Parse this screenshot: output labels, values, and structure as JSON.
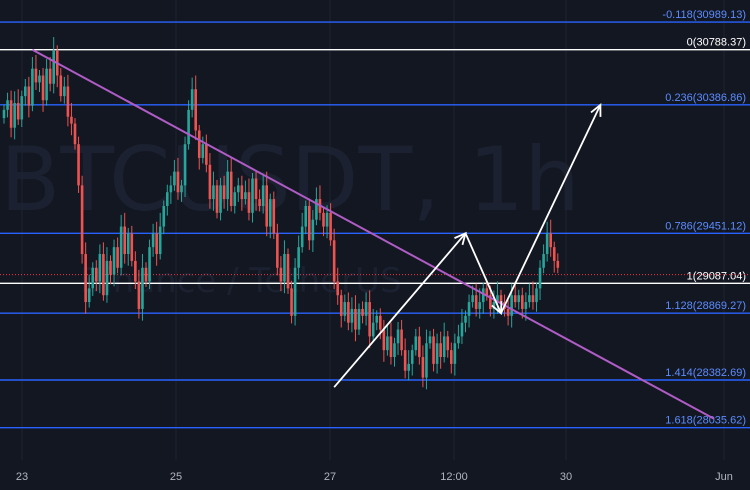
{
  "chart_data": {
    "type": "candlestick",
    "symbol_watermark": "BTCUSDT, 1h",
    "exchange_watermark": "Binance / TetherUS",
    "x_ticks": [
      "23",
      "25",
      "27",
      "12:00",
      "30",
      "Jun"
    ],
    "fib_levels": [
      {
        "ratio": "-0.118",
        "price": 30989.13,
        "label": "-0.118(30989.13)",
        "color": "#2962ff"
      },
      {
        "ratio": "0",
        "price": 30788.37,
        "label": "0(30788.37)",
        "color": "#ffffff"
      },
      {
        "ratio": "0.236",
        "price": 30386.86,
        "label": "0.236(30386.86)",
        "color": "#2962ff"
      },
      {
        "ratio": "0.786",
        "price": 29451.12,
        "label": "0.786(29451.12)",
        "color": "#2962ff"
      },
      {
        "ratio": "1",
        "price": 29087.04,
        "label": "1(29087.04)",
        "color": "#ffffff"
      },
      {
        "ratio": "1.128",
        "price": 28869.27,
        "label": "1.128(28869.27)",
        "color": "#2962ff"
      },
      {
        "ratio": "1.414",
        "price": 28382.69,
        "label": "1.414(28382.69)",
        "color": "#2962ff"
      },
      {
        "ratio": "1.618",
        "price": 28035.62,
        "label": "1.618(28035.62)",
        "color": "#2962ff"
      }
    ],
    "price_range": [
      27800,
      31150
    ],
    "current_price": 29150,
    "candle_closes": [
      30350,
      30420,
      30220,
      30400,
      30280,
      30450,
      30520,
      30380,
      30650,
      30550,
      30600,
      30420,
      30650,
      30540,
      30780,
      30600,
      30450,
      30520,
      30300,
      30250,
      30100,
      29800,
      29300,
      28950,
      29050,
      29200,
      29100,
      29300,
      29000,
      29250,
      29150,
      29350,
      29200,
      29500,
      29300,
      29450,
      29250,
      29100,
      28900,
      29200,
      29100,
      29350,
      29450,
      29300,
      29500,
      29650,
      29750,
      29800,
      29900,
      29750,
      29800,
      30100,
      30350,
      30500,
      30200,
      30000,
      30100,
      29950,
      29700,
      29800,
      29600,
      29800,
      29700,
      29900,
      29650,
      29750,
      29800,
      29700,
      29750,
      29600,
      29850,
      29700,
      29650,
      29800,
      29500,
      29700,
      29450,
      29200,
      29100,
      29300,
      29050,
      28850,
      29200,
      29350,
      29500,
      29650,
      29400,
      29550,
      29700,
      29600,
      29500,
      29600,
      29400,
      29100,
      29000,
      28850,
      28950,
      28800,
      28900,
      28750,
      28900,
      28850,
      28950,
      28700,
      28800,
      28850,
      28750,
      28600,
      28700,
      28550,
      28650,
      28750,
      28600,
      28450,
      28500,
      28600,
      28700,
      28550,
      28400,
      28650,
      28700,
      28500,
      28650,
      28550,
      28700,
      28600,
      28500,
      28650,
      28700,
      28800,
      28850,
      28950,
      29000,
      28900,
      28950,
      29050,
      29000,
      28900,
      28950,
      29000,
      28950,
      28900,
      28850,
      29000,
      28950,
      29000,
      28900,
      28950,
      29000,
      28950,
      29050,
      29200,
      29300,
      29450,
      29350,
      29250,
      29200
    ],
    "trendline": {
      "from": {
        "candle": 8,
        "price": 30788
      },
      "to": {
        "candle": 200,
        "price": 28100
      },
      "color": "#b05cc6"
    },
    "projection_path": [
      {
        "candle": 93,
        "price": 28330
      },
      {
        "candle": 130,
        "price": 29451
      },
      {
        "candle": 140,
        "price": 28869
      },
      {
        "candle": 168,
        "price": 30386
      }
    ]
  }
}
